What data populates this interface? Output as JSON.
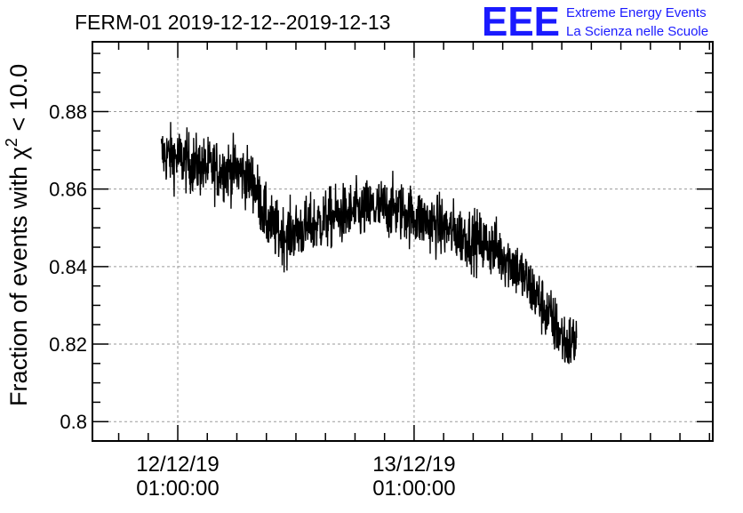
{
  "chart_data": {
    "type": "line",
    "title": "FERM-01 2019-12-12--2019-12-13",
    "ylabel_prefix": "Fraction of events with χ",
    "ylabel_sup": "2",
    "ylabel_suffix": " < 10.0",
    "xlabel": "",
    "ylim": [
      0.795,
      0.898
    ],
    "xlim": [
      "2019-12-11 16:20",
      "2019-12-14 07:20"
    ],
    "yticks": [
      0.8,
      0.82,
      0.84,
      0.86,
      0.88
    ],
    "ytick_labels": [
      "0.8",
      "0.82",
      "0.84",
      "0.86",
      "0.88"
    ],
    "xticks": [
      {
        "x": "2019-12-12 01:00",
        "label_date": "12/12/19",
        "label_time": "01:00:00"
      },
      {
        "x": "2019-12-13 01:00",
        "label_date": "13/12/19",
        "label_time": "01:00:00"
      }
    ],
    "grid": true,
    "series": [
      {
        "color": "#000000",
        "x": [
          "2019-12-11 23:20",
          "2019-12-12 01:00",
          "2019-12-12 03:00",
          "2019-12-12 05:00",
          "2019-12-12 07:00",
          "2019-12-12 08:40",
          "2019-12-12 10:00",
          "2019-12-12 11:30",
          "2019-12-12 13:00",
          "2019-12-12 15:00",
          "2019-12-12 17:00",
          "2019-12-12 19:00",
          "2019-12-12 21:00",
          "2019-12-12 23:00",
          "2019-12-13 01:00",
          "2019-12-13 03:00",
          "2019-12-13 05:00",
          "2019-12-13 07:00",
          "2019-12-13 09:00",
          "2019-12-13 11:00",
          "2019-12-13 13:00",
          "2019-12-13 15:00",
          "2019-12-13 16:30",
          "2019-12-13 17:30"
        ],
        "y": [
          0.869,
          0.868,
          0.866,
          0.865,
          0.865,
          0.862,
          0.852,
          0.848,
          0.849,
          0.851,
          0.853,
          0.854,
          0.855,
          0.855,
          0.853,
          0.851,
          0.849,
          0.847,
          0.845,
          0.841,
          0.834,
          0.826,
          0.82,
          0.821
        ],
        "noise_amplitude": 0.007
      }
    ]
  },
  "logo": {
    "letters": "EEE",
    "line1": "Extreme Energy Events",
    "line2": "La Scienza nelle Scuole"
  }
}
